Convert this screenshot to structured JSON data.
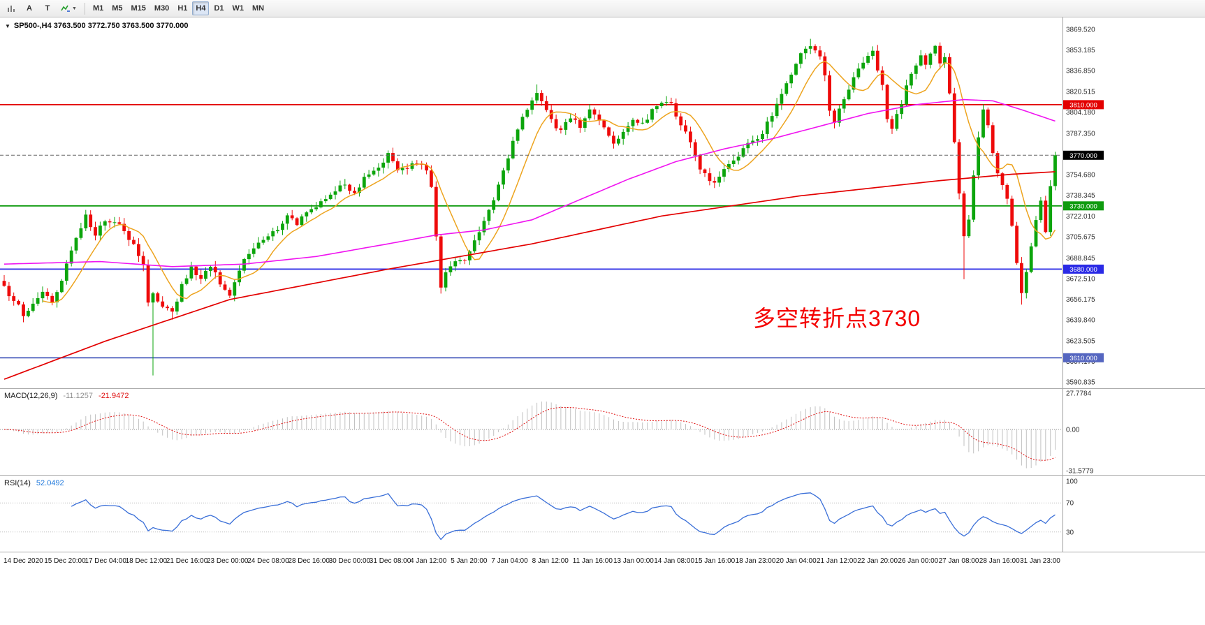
{
  "toolbar": {
    "tool_a": "A",
    "tool_t": "T",
    "timeframes": [
      "M1",
      "M5",
      "M15",
      "M30",
      "H1",
      "H4",
      "D1",
      "W1",
      "MN"
    ],
    "active_timeframe": "H4"
  },
  "main_chart": {
    "symbol_line": "SP500-,H4 3763.500 3772.750 3763.500 3770.000",
    "annotation": {
      "text": "多空转折点3730",
      "color": "#f40000"
    },
    "price_axis_labels": [
      "3869.520",
      "3853.185",
      "3836.850",
      "3820.515",
      "3804.180",
      "3787.350",
      "3754.680",
      "3738.345",
      "3722.010",
      "3705.675",
      "3688.845",
      "3672.510",
      "3656.175",
      "3639.840",
      "3623.505",
      "3607.170",
      "3590.835"
    ],
    "levels": [
      {
        "value": 3810,
        "label": "3810.000",
        "color": "#e30000"
      },
      {
        "value": 3730,
        "label": "3730.000",
        "color": "#0f9b0f"
      },
      {
        "value": 3680,
        "label": "3680.000",
        "color": "#2a2ae6"
      },
      {
        "value": 3610,
        "label": "3610.000",
        "color": "#5566c0"
      }
    ],
    "current_price": {
      "value": 3770,
      "label": "3770.000",
      "color": "#000000"
    }
  },
  "chart_data": {
    "type": "candlestick",
    "symbol": "SP500-",
    "timeframe": "H4",
    "current_bar": {
      "open": 3763.5,
      "high": 3772.75,
      "low": 3763.5,
      "close": 3770.0
    },
    "bars": 220,
    "x_labels": [
      "14 Dec 2020",
      "15 Dec 20:00",
      "17 Dec 04:00",
      "18 Dec 12:00",
      "21 Dec 16:00",
      "23 Dec 00:00",
      "24 Dec 08:00",
      "28 Dec 16:00",
      "30 Dec 00:00",
      "31 Dec 08:00",
      "4 Jan 12:00",
      "5 Jan 20:00",
      "7 Jan 04:00",
      "8 Jan 12:00",
      "11 Jan 16:00",
      "13 Jan 00:00",
      "14 Jan 08:00",
      "15 Jan 16:00",
      "18 Jan 23:00",
      "20 Jan 04:00",
      "21 Jan 12:00",
      "22 Jan 20:00",
      "26 Jan 00:00",
      "27 Jan 08:00",
      "28 Jan 16:00",
      "31 Jan 23:00"
    ],
    "price_path": [
      [
        0,
        3665
      ],
      [
        2,
        3656
      ],
      [
        4,
        3644
      ],
      [
        6,
        3652
      ],
      [
        8,
        3661
      ],
      [
        10,
        3656
      ],
      [
        12,
        3669
      ],
      [
        14,
        3696
      ],
      [
        16,
        3714
      ],
      [
        17,
        3722
      ],
      [
        19,
        3708
      ],
      [
        21,
        3717
      ],
      [
        23,
        3719
      ],
      [
        25,
        3709
      ],
      [
        27,
        3698
      ],
      [
        29,
        3685
      ],
      [
        30,
        3655
      ],
      [
        31,
        3662
      ],
      [
        33,
        3649
      ],
      [
        35,
        3645
      ],
      [
        37,
        3667
      ],
      [
        39,
        3681
      ],
      [
        41,
        3671
      ],
      [
        43,
        3684
      ],
      [
        45,
        3667
      ],
      [
        47,
        3660
      ],
      [
        49,
        3681
      ],
      [
        51,
        3693
      ],
      [
        53,
        3699
      ],
      [
        55,
        3707
      ],
      [
        57,
        3713
      ],
      [
        59,
        3721
      ],
      [
        61,
        3717
      ],
      [
        63,
        3723
      ],
      [
        65,
        3731
      ],
      [
        67,
        3737
      ],
      [
        69,
        3741
      ],
      [
        71,
        3747
      ],
      [
        73,
        3739
      ],
      [
        75,
        3751
      ],
      [
        77,
        3757
      ],
      [
        79,
        3763
      ],
      [
        80,
        3771
      ],
      [
        82,
        3757
      ],
      [
        84,
        3761
      ],
      [
        86,
        3765
      ],
      [
        88,
        3756
      ],
      [
        89,
        3744
      ],
      [
        90,
        3705
      ],
      [
        91,
        3666
      ],
      [
        92,
        3676
      ],
      [
        94,
        3686
      ],
      [
        96,
        3689
      ],
      [
        98,
        3701
      ],
      [
        100,
        3717
      ],
      [
        102,
        3734
      ],
      [
        104,
        3757
      ],
      [
        106,
        3781
      ],
      [
        108,
        3799
      ],
      [
        110,
        3814
      ],
      [
        111,
        3821
      ],
      [
        112,
        3811
      ],
      [
        114,
        3797
      ],
      [
        116,
        3789
      ],
      [
        118,
        3801
      ],
      [
        120,
        3794
      ],
      [
        122,
        3805
      ],
      [
        124,
        3797
      ],
      [
        126,
        3787
      ],
      [
        127,
        3777
      ],
      [
        129,
        3789
      ],
      [
        131,
        3799
      ],
      [
        133,
        3794
      ],
      [
        135,
        3805
      ],
      [
        137,
        3811
      ],
      [
        139,
        3809
      ],
      [
        141,
        3795
      ],
      [
        143,
        3779
      ],
      [
        145,
        3761
      ],
      [
        147,
        3751
      ],
      [
        148,
        3748
      ],
      [
        150,
        3759
      ],
      [
        152,
        3767
      ],
      [
        154,
        3775
      ],
      [
        156,
        3781
      ],
      [
        158,
        3789
      ],
      [
        160,
        3801
      ],
      [
        162,
        3817
      ],
      [
        164,
        3835
      ],
      [
        166,
        3849
      ],
      [
        168,
        3857
      ],
      [
        170,
        3847
      ],
      [
        171,
        3835
      ],
      [
        172,
        3807
      ],
      [
        173,
        3797
      ],
      [
        175,
        3814
      ],
      [
        177,
        3831
      ],
      [
        179,
        3845
      ],
      [
        181,
        3851
      ],
      [
        183,
        3827
      ],
      [
        184,
        3799
      ],
      [
        185,
        3791
      ],
      [
        187,
        3811
      ],
      [
        189,
        3835
      ],
      [
        191,
        3849
      ],
      [
        192,
        3841
      ],
      [
        193,
        3851
      ],
      [
        194,
        3855
      ],
      [
        195,
        3843
      ],
      [
        196,
        3847
      ],
      [
        197,
        3819
      ],
      [
        198,
        3779
      ],
      [
        199,
        3739
      ],
      [
        200,
        3705
      ],
      [
        201,
        3721
      ],
      [
        202,
        3754
      ],
      [
        203,
        3784
      ],
      [
        204,
        3805
      ],
      [
        205,
        3794
      ],
      [
        206,
        3771
      ],
      [
        207,
        3757
      ],
      [
        208,
        3747
      ],
      [
        209,
        3737
      ],
      [
        210,
        3714
      ],
      [
        211,
        3684
      ],
      [
        212,
        3661
      ],
      [
        213,
        3679
      ],
      [
        214,
        3699
      ],
      [
        215,
        3721
      ],
      [
        216,
        3734
      ],
      [
        217,
        3711
      ],
      [
        218,
        3744
      ],
      [
        219,
        3770
      ]
    ],
    "wick_overrides": {
      "4": {
        "low": 3638
      },
      "31": {
        "low": 3596
      },
      "35": {
        "low": 3640
      },
      "91": {
        "low": 3663
      },
      "111": {
        "high": 3826
      },
      "168": {
        "high": 3862
      },
      "200": {
        "low": 3672
      },
      "212": {
        "low": 3652
      },
      "219": {
        "high": 3772.75
      }
    },
    "ma_red": [
      [
        0,
        3593
      ],
      [
        21,
        3623
      ],
      [
        47,
        3656
      ],
      [
        80,
        3680
      ],
      [
        110,
        3700
      ],
      [
        137,
        3722
      ],
      [
        166,
        3738
      ],
      [
        195,
        3750
      ],
      [
        210,
        3755
      ],
      [
        219,
        3757
      ]
    ],
    "ma_magenta": [
      [
        0,
        3684
      ],
      [
        20,
        3686
      ],
      [
        35,
        3682
      ],
      [
        50,
        3684
      ],
      [
        65,
        3690
      ],
      [
        80,
        3700
      ],
      [
        90,
        3707
      ],
      [
        100,
        3711
      ],
      [
        110,
        3719
      ],
      [
        120,
        3735
      ],
      [
        130,
        3751
      ],
      [
        140,
        3765
      ],
      [
        150,
        3775
      ],
      [
        160,
        3783
      ],
      [
        170,
        3793
      ],
      [
        180,
        3803
      ],
      [
        190,
        3810
      ],
      [
        200,
        3814
      ],
      [
        206,
        3813
      ],
      [
        212,
        3806
      ],
      [
        219,
        3797
      ]
    ],
    "ma_orange_period": 9,
    "horizontal_levels": [
      3810,
      3730,
      3680,
      3610
    ],
    "colors": {
      "up": "#0ca50c",
      "down": "#ee0a0a",
      "ma_fast": "#eda41f",
      "ma_mid": "#f014f0",
      "ma_slow": "#e30000"
    },
    "y_axis": {
      "top_label_price": 3869.52,
      "bottom_label_price": 3590.835
    }
  },
  "macd": {
    "title": "MACD(12,26,9)",
    "value_main": "-11.1257",
    "value_signal": "-21.9472",
    "axis_labels": [
      "27.7784",
      "0.00",
      "-31.5779"
    ],
    "range": [
      27.7784,
      -31.5779
    ]
  },
  "rsi": {
    "title": "RSI(14)",
    "value": "52.0492",
    "axis_labels": [
      "100",
      "70",
      "30"
    ],
    "levels": [
      70,
      30
    ]
  }
}
